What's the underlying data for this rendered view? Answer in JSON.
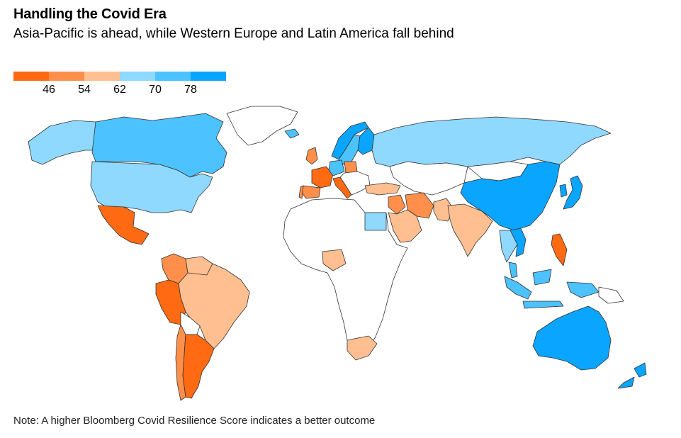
{
  "header": {
    "title": "Handling the Covid Era",
    "subtitle": "Asia-Pacific is ahead, while Western Europe and Latin America fall behind"
  },
  "legend": {
    "colors": [
      "#ff6a13",
      "#ff8f4a",
      "#ffbf90",
      "#8fd8ff",
      "#4cc2ff",
      "#0aa5ff"
    ],
    "ticks": [
      "46",
      "54",
      "62",
      "70",
      "78"
    ]
  },
  "map": {
    "type": "choropleth",
    "metric": "Bloomberg Covid Resilience Score",
    "no_data_color": "#ffffff",
    "regions": [
      {
        "name": "Canada",
        "color": "#4cc2ff"
      },
      {
        "name": "Alaska",
        "color": "#8fd8ff"
      },
      {
        "name": "United States",
        "color": "#8fd8ff"
      },
      {
        "name": "Mexico",
        "color": "#ff6a13"
      },
      {
        "name": "Colombia",
        "color": "#ff8f4a"
      },
      {
        "name": "Venezuela",
        "color": "#ffbf90"
      },
      {
        "name": "Peru",
        "color": "#ff6a13"
      },
      {
        "name": "Brazil",
        "color": "#ffbf90"
      },
      {
        "name": "Bolivia",
        "color": "#ffffff"
      },
      {
        "name": "Chile",
        "color": "#ff8f4a"
      },
      {
        "name": "Argentina",
        "color": "#ff6a13"
      },
      {
        "name": "Greenland",
        "color": "#ffffff"
      },
      {
        "name": "Iceland",
        "color": "#4cc2ff"
      },
      {
        "name": "Norway",
        "color": "#0aa5ff"
      },
      {
        "name": "Sweden",
        "color": "#4cc2ff"
      },
      {
        "name": "Finland",
        "color": "#0aa5ff"
      },
      {
        "name": "United Kingdom",
        "color": "#ff8f4a"
      },
      {
        "name": "France",
        "color": "#ff6a13"
      },
      {
        "name": "Spain",
        "color": "#ff8f4a"
      },
      {
        "name": "Portugal",
        "color": "#ff8f4a"
      },
      {
        "name": "Germany",
        "color": "#4cc2ff"
      },
      {
        "name": "Poland",
        "color": "#ff8f4a"
      },
      {
        "name": "Italy",
        "color": "#ff6a13"
      },
      {
        "name": "Russia",
        "color": "#8fd8ff"
      },
      {
        "name": "Turkey",
        "color": "#ffbf90"
      },
      {
        "name": "Iran",
        "color": "#ff8f4a"
      },
      {
        "name": "Iraq",
        "color": "#ff8f4a"
      },
      {
        "name": "Saudi Arabia",
        "color": "#ffbf90"
      },
      {
        "name": "Egypt",
        "color": "#8fd8ff"
      },
      {
        "name": "Nigeria",
        "color": "#ffbf90"
      },
      {
        "name": "South Africa",
        "color": "#ffbf90"
      },
      {
        "name": "Africa (other)",
        "color": "#ffffff"
      },
      {
        "name": "Kazakhstan & Central Asia",
        "color": "#ffffff"
      },
      {
        "name": "Pakistan",
        "color": "#ffbf90"
      },
      {
        "name": "India",
        "color": "#ffbf90"
      },
      {
        "name": "China",
        "color": "#0aa5ff"
      },
      {
        "name": "Mongolia",
        "color": "#ffffff"
      },
      {
        "name": "Japan",
        "color": "#0aa5ff"
      },
      {
        "name": "South Korea",
        "color": "#0aa5ff"
      },
      {
        "name": "Vietnam",
        "color": "#0aa5ff"
      },
      {
        "name": "Thailand",
        "color": "#8fd8ff"
      },
      {
        "name": "Philippines",
        "color": "#ff6a13"
      },
      {
        "name": "Malaysia",
        "color": "#4cc2ff"
      },
      {
        "name": "Indonesia",
        "color": "#4cc2ff"
      },
      {
        "name": "Papua New Guinea",
        "color": "#ffffff"
      },
      {
        "name": "Australia",
        "color": "#0aa5ff"
      },
      {
        "name": "New Zealand",
        "color": "#0aa5ff"
      }
    ]
  },
  "footer": {
    "note": "Note: A higher Bloomberg Covid Resilience Score indicates a better outcome"
  }
}
